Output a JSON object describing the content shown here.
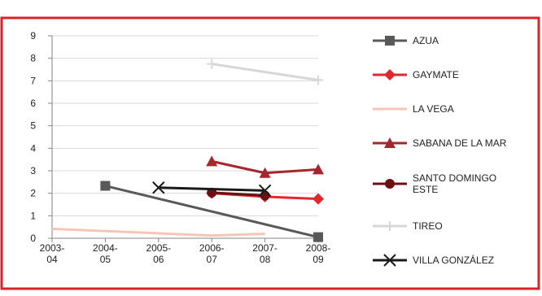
{
  "chart_data": {
    "type": "line",
    "title": "",
    "xlabel": "",
    "ylabel": "",
    "ylim": [
      0,
      9
    ],
    "grid": true,
    "legend_position": "right",
    "categories": [
      [
        "2003-",
        "04"
      ],
      [
        "2004-",
        "05"
      ],
      [
        "2005-",
        "06"
      ],
      [
        "2006-",
        "07"
      ],
      [
        "2007-",
        "08"
      ],
      [
        "2008-",
        "09"
      ]
    ],
    "y_ticks": [
      "0",
      "1",
      "2",
      "3",
      "4",
      "5",
      "6",
      "7",
      "8",
      "9"
    ],
    "series": [
      {
        "name": [
          "AZUA"
        ],
        "color": "#595959",
        "marker": "square",
        "values": [
          null,
          2.33,
          null,
          null,
          null,
          0.05
        ]
      },
      {
        "name": [
          "GAYMATE"
        ],
        "color": "#e3262f",
        "marker": "diamond",
        "values": [
          null,
          null,
          null,
          2.0,
          1.85,
          1.75
        ]
      },
      {
        "name": [
          "LA VEGA"
        ],
        "color": "#f5c6b6",
        "marker": "none",
        "values": [
          0.42,
          null,
          null,
          0.12,
          0.2,
          null
        ]
      },
      {
        "name": [
          "SABANA DE LA MAR"
        ],
        "color": "#a6262d",
        "marker": "triangle",
        "values": [
          null,
          null,
          null,
          3.42,
          2.9,
          3.06
        ]
      },
      {
        "name": [
          "SANTO DOMINGO",
          "ESTE"
        ],
        "color": "#6b0f12",
        "marker": "circle",
        "values": [
          null,
          null,
          null,
          2.03,
          1.9,
          null
        ]
      },
      {
        "name": [
          "TIREO"
        ],
        "color": "#d7d7d7",
        "marker": "plus",
        "values": [
          null,
          null,
          null,
          7.75,
          null,
          7.03
        ]
      },
      {
        "name": [
          "VILLA GONZÁLEZ"
        ],
        "color": "#1a1a1a",
        "marker": "x",
        "values": [
          null,
          null,
          2.25,
          null,
          2.12,
          null
        ]
      }
    ]
  }
}
